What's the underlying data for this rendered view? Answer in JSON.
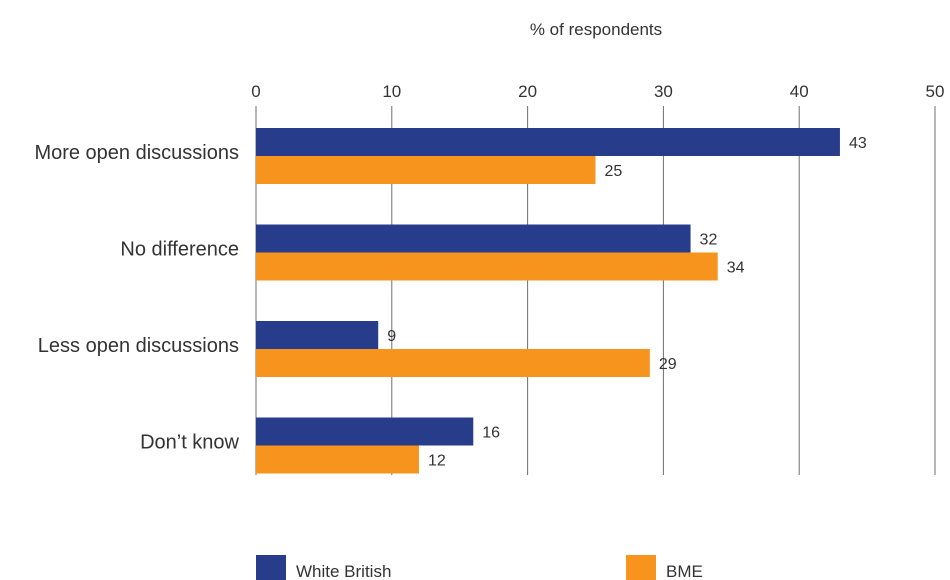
{
  "chart_data": {
    "type": "bar",
    "orientation": "horizontal",
    "xlabel": "% of respondents",
    "xlim": [
      0,
      50
    ],
    "xticks": [
      "0",
      "10",
      "20",
      "30",
      "40",
      "50"
    ],
    "grid": true,
    "legend_position": "bottom",
    "categories": [
      "More open discussions",
      "No difference",
      "Less open discussions",
      "Don’t know"
    ],
    "series": [
      {
        "name": "White British",
        "color": "#283c8c",
        "values": [
          43,
          32,
          9,
          16
        ]
      },
      {
        "name": "BME",
        "color": "#f7941d",
        "values": [
          25,
          34,
          29,
          12
        ]
      }
    ]
  }
}
